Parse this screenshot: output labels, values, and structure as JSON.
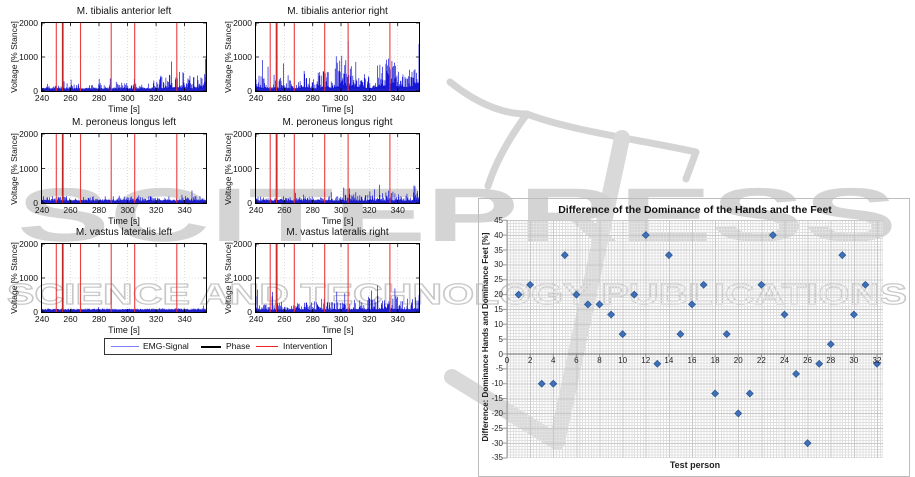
{
  "watermark": {
    "brand": "SCITEPRESS",
    "subtitle": "SCIENCE AND TECHNOLOGY PUBLICATIONS",
    "brand_color": "#d4d4d4",
    "outline_color": "#c8c8c8"
  },
  "emg": {
    "ylabel": "Voltage [% Stance]",
    "xlabel": "Time [s]",
    "signal_color": "#1616d6",
    "intervention_color": "#e93333",
    "phase_color": "#000000"
  },
  "legend": {
    "items": [
      {
        "label": "EMG-Signal",
        "color": "#8080ff"
      },
      {
        "label": "Phase",
        "color": "#000000"
      },
      {
        "label": "Intervention",
        "color": "#ee2222"
      }
    ]
  },
  "chart_data": [
    {
      "type": "area",
      "title": "M. tibialis anterior left",
      "xlabel": "Time [s]",
      "ylabel": "Voltage [% Stance]",
      "xlim": [
        240,
        355
      ],
      "ylim": [
        0,
        2000
      ],
      "xticks": [
        240,
        260,
        280,
        300,
        320,
        340
      ],
      "yticks": [
        0,
        1000,
        2000
      ],
      "intervention_times": [
        250,
        254.5,
        267,
        288.5,
        305,
        334.5
      ],
      "phase_time": 254.5,
      "seed": 11,
      "envelope_pct_of_ymax": [
        12,
        10,
        8,
        14,
        10,
        9,
        13,
        10,
        12,
        16,
        10,
        12,
        20,
        28,
        38,
        22,
        26,
        30
      ]
    },
    {
      "type": "area",
      "title": "M. tibialis anterior right",
      "xlabel": "Time [s]",
      "ylabel": "Voltage [% Stance]",
      "xlim": [
        240,
        355
      ],
      "ylim": [
        0,
        2000
      ],
      "xticks": [
        240,
        260,
        280,
        300,
        320,
        340
      ],
      "yticks": [
        0,
        1000,
        2000
      ],
      "intervention_times": [
        250,
        254.5,
        267,
        288.5,
        305,
        334.5
      ],
      "phase_time": 254.5,
      "seed": 22,
      "envelope_pct_of_ymax": [
        45,
        25,
        15,
        30,
        12,
        35,
        15,
        40,
        30,
        55,
        50,
        35,
        25,
        50,
        55,
        45,
        35,
        75
      ]
    },
    {
      "type": "area",
      "title": "M. peroneus longus left",
      "xlabel": "Time [s]",
      "ylabel": "Voltage [% Stance]",
      "xlim": [
        240,
        355
      ],
      "ylim": [
        0,
        2000
      ],
      "xticks": [
        240,
        260,
        280,
        300,
        320,
        340
      ],
      "yticks": [
        0,
        1000,
        2000
      ],
      "intervention_times": [
        250,
        254.5,
        267,
        288.5,
        305,
        334.5
      ],
      "phase_time": 254.5,
      "seed": 33,
      "envelope_pct_of_ymax": [
        11,
        10,
        10,
        11,
        9,
        10,
        10,
        10,
        11,
        10,
        12,
        10,
        11,
        10,
        10,
        11,
        10,
        12
      ]
    },
    {
      "type": "area",
      "title": "M. peroneus longus right",
      "xlabel": "Time [s]",
      "ylabel": "Voltage [% Stance]",
      "xlim": [
        240,
        355
      ],
      "ylim": [
        0,
        2000
      ],
      "xticks": [
        240,
        260,
        280,
        300,
        320,
        340
      ],
      "yticks": [
        0,
        1000,
        2000
      ],
      "intervention_times": [
        250,
        254.5,
        267,
        288.5,
        305,
        334.5
      ],
      "phase_time": 254.5,
      "seed": 44,
      "envelope_pct_of_ymax": [
        10,
        9,
        10,
        11,
        9,
        10,
        10,
        11,
        10,
        12,
        14,
        13,
        20,
        22,
        18,
        16,
        14,
        22
      ]
    },
    {
      "type": "area",
      "title": "M. vastus lateralis left",
      "xlabel": "Time [s]",
      "ylabel": "Voltage [% Stance]",
      "xlim": [
        240,
        355
      ],
      "ylim": [
        0,
        2000
      ],
      "xticks": [
        240,
        260,
        280,
        300,
        320,
        340
      ],
      "yticks": [
        0,
        1000,
        2000
      ],
      "intervention_times": [
        250,
        254.5,
        267,
        288.5,
        305,
        334.5
      ],
      "phase_time": 254.5,
      "seed": 55,
      "envelope_pct_of_ymax": [
        5,
        5,
        4,
        5,
        5,
        4,
        5,
        5,
        5,
        5,
        4,
        5,
        6,
        7,
        6,
        5,
        5,
        7
      ]
    },
    {
      "type": "area",
      "title": "M. vastus lateralis right",
      "xlabel": "Time [s]",
      "ylabel": "Voltage [% Stance]",
      "xlim": [
        240,
        355
      ],
      "ylim": [
        0,
        2000
      ],
      "xticks": [
        240,
        260,
        280,
        300,
        320,
        340
      ],
      "yticks": [
        0,
        1000,
        2000
      ],
      "intervention_times": [
        250,
        254.5,
        267,
        288.5,
        305,
        334.5
      ],
      "phase_time": 254.5,
      "seed": 66,
      "envelope_pct_of_ymax": [
        18,
        15,
        16,
        14,
        13,
        15,
        16,
        14,
        15,
        17,
        15,
        16,
        22,
        28,
        25,
        22,
        20,
        26
      ]
    },
    {
      "type": "scatter",
      "title": "Difference of the Dominance of the Hands and the Feet",
      "xlabel": "Test person",
      "ylabel": "Difference: Dominance Hands and Dominance Feet [%]",
      "xlim": [
        0,
        32.5
      ],
      "ylim": [
        -35,
        45
      ],
      "xticks": [
        0,
        2,
        4,
        6,
        8,
        10,
        12,
        14,
        16,
        18,
        20,
        22,
        24,
        26,
        28,
        30,
        32
      ],
      "yticks": [
        45,
        40,
        35,
        30,
        25,
        20,
        15,
        10,
        5,
        0,
        -5,
        -10,
        -15,
        -20,
        -25,
        -30,
        -35
      ],
      "grid": "minor+major",
      "legend_position": "none",
      "marker": "diamond",
      "marker_color": "#3E6FB7",
      "x": [
        1,
        2,
        3,
        4,
        5,
        6,
        7,
        8,
        9,
        10,
        11,
        12,
        13,
        14,
        15,
        16,
        17,
        18,
        19,
        20,
        21,
        22,
        23,
        24,
        25,
        26,
        27,
        28,
        29,
        30,
        31,
        32
      ],
      "y": [
        20,
        23.3,
        -10,
        -10,
        33.3,
        20,
        16.7,
        16.7,
        13.3,
        6.7,
        20,
        40,
        -3.3,
        33.3,
        6.7,
        16.7,
        23.3,
        -13.3,
        6.7,
        -20,
        -13.3,
        23.3,
        40,
        13.3,
        -6.7,
        -30,
        -3.3,
        3.3,
        33.3,
        13.3,
        23.3,
        -3.3
      ]
    }
  ]
}
